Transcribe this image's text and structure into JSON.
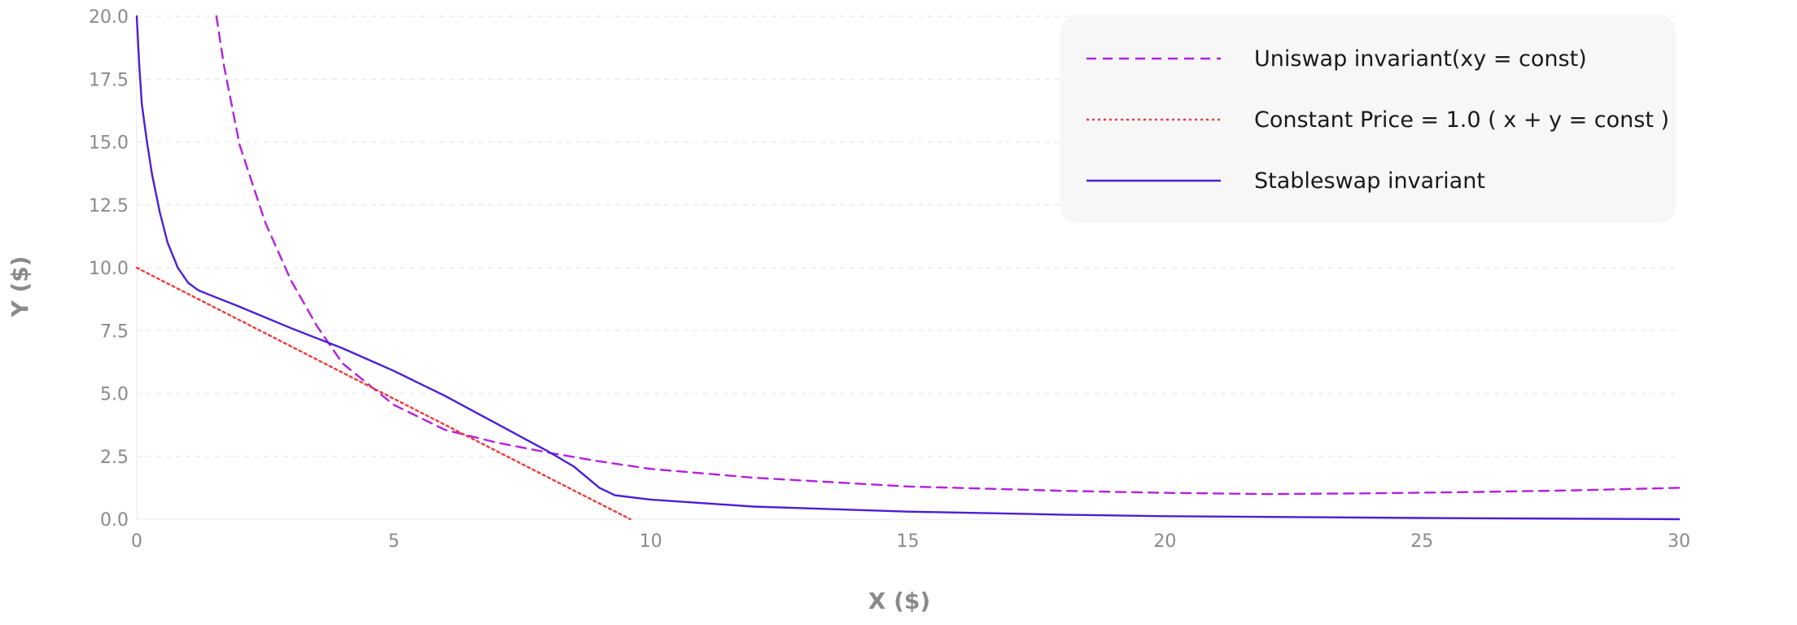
{
  "chart_data": {
    "type": "line",
    "title": "",
    "xlabel": "X ($)",
    "ylabel": "Y ($)",
    "xlim": [
      0,
      30
    ],
    "ylim": [
      0,
      20
    ],
    "x_ticks": [
      "0",
      "5",
      "10",
      "15",
      "20",
      "25",
      "30"
    ],
    "y_ticks": [
      "0.0",
      "2.5",
      "5.0",
      "7.5",
      "10.0",
      "12.5",
      "15.0",
      "17.5",
      "20.0"
    ],
    "grid": true,
    "legend_position": "top-right",
    "series": [
      {
        "name": "Uniswap invariant(xy = const)",
        "style": "dashed",
        "color": "#b41fe0",
        "points": [
          [
            1.55,
            20.0
          ],
          [
            1.7,
            18.0
          ],
          [
            2.0,
            14.9
          ],
          [
            2.5,
            11.8
          ],
          [
            3.0,
            9.5
          ],
          [
            3.5,
            7.7
          ],
          [
            4.0,
            6.2
          ],
          [
            5.0,
            4.55
          ],
          [
            6.0,
            3.55
          ],
          [
            7.0,
            3.05
          ],
          [
            8.0,
            2.65
          ],
          [
            9.0,
            2.3
          ],
          [
            10.0,
            2.0
          ],
          [
            12.0,
            1.65
          ],
          [
            15.0,
            1.3
          ],
          [
            18.0,
            1.13
          ],
          [
            20.0,
            1.05
          ],
          [
            22.0,
            1.0
          ],
          [
            24.0,
            1.03
          ],
          [
            26.0,
            1.08
          ],
          [
            28.0,
            1.15
          ],
          [
            30.0,
            1.25
          ]
        ]
      },
      {
        "name": "Constant Price = 1.0 ( x + y = const )",
        "style": "dotted",
        "color": "#f03a3a",
        "points": [
          [
            0.0,
            10.0
          ],
          [
            9.6,
            0.0
          ]
        ]
      },
      {
        "name": "Stableswap invariant",
        "style": "solid",
        "color": "#4a1fd6",
        "points": [
          [
            0.0,
            20.0
          ],
          [
            0.05,
            18.0
          ],
          [
            0.1,
            16.5
          ],
          [
            0.2,
            15.0
          ],
          [
            0.3,
            13.7
          ],
          [
            0.45,
            12.2
          ],
          [
            0.6,
            11.0
          ],
          [
            0.8,
            10.0
          ],
          [
            1.0,
            9.4
          ],
          [
            1.2,
            9.1
          ],
          [
            2.0,
            8.45
          ],
          [
            3.0,
            7.6
          ],
          [
            4.0,
            6.8
          ],
          [
            5.0,
            5.9
          ],
          [
            6.0,
            4.9
          ],
          [
            7.0,
            3.8
          ],
          [
            8.0,
            2.7
          ],
          [
            8.5,
            2.1
          ],
          [
            9.0,
            1.25
          ],
          [
            9.3,
            0.95
          ],
          [
            10.0,
            0.78
          ],
          [
            12.0,
            0.5
          ],
          [
            15.0,
            0.3
          ],
          [
            18.0,
            0.18
          ],
          [
            20.0,
            0.12
          ],
          [
            25.0,
            0.05
          ],
          [
            30.0,
            0.0
          ]
        ]
      }
    ]
  }
}
